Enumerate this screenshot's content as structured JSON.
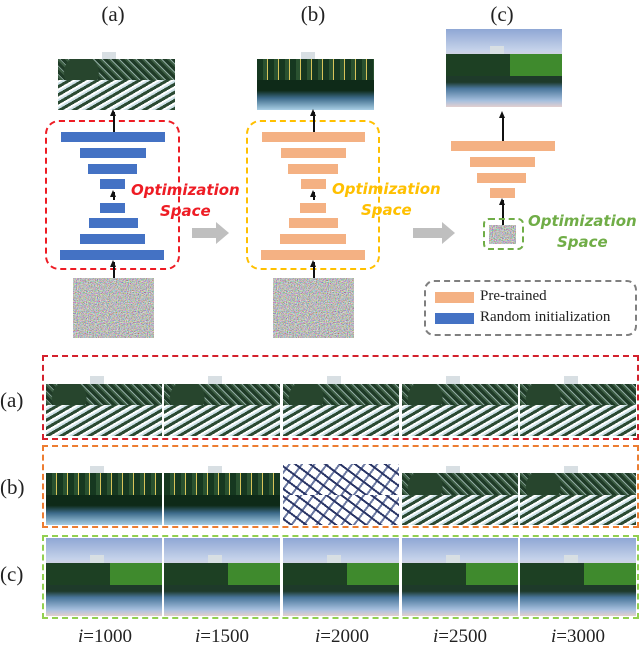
{
  "columns": [
    "(a)",
    "(b)",
    "(c)"
  ],
  "optimization_space": [
    "Optimization",
    "Space"
  ],
  "legend": [
    {
      "label": "Pre-trained",
      "color": "#f4b183"
    },
    {
      "label": "Random initialization",
      "color": "#4472c4"
    }
  ],
  "colors": {
    "a_box": "#ee1c24",
    "b_box": "#ffc000",
    "c_box": "#70ad47",
    "row_a_box": "#c8102e",
    "row_b_box": "#ed7d31",
    "row_c_box": "#92d050",
    "arrow": "#bfbfbf"
  },
  "rows": [
    "(a)",
    "(b)",
    "(c)"
  ],
  "iterations": {
    "var": "i",
    "values": [
      "=1000",
      "=1500",
      "=2000",
      "=2500",
      "=3000"
    ]
  }
}
